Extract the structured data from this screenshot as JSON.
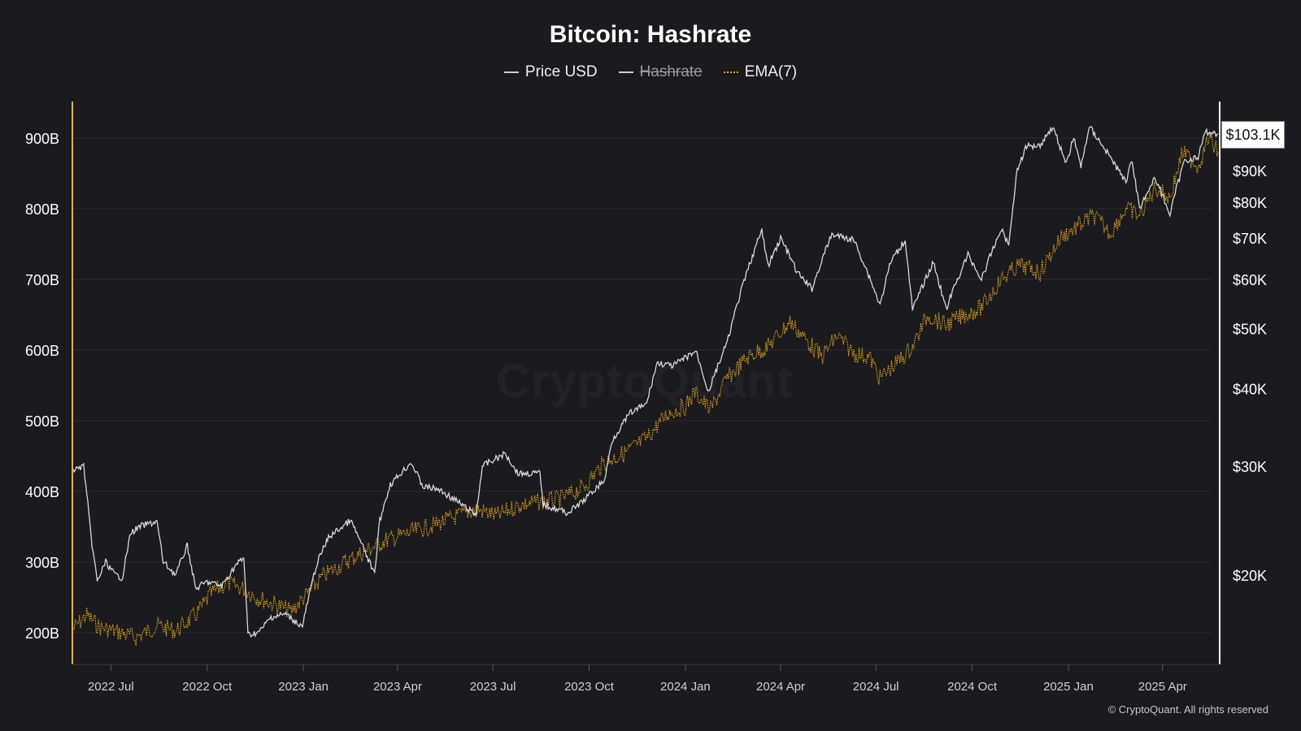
{
  "chart_data": {
    "type": "line",
    "title": "Bitcoin: Hashrate",
    "legend": [
      {
        "name": "Price USD",
        "style": "solid",
        "color": "#d4d4d4",
        "hidden": false
      },
      {
        "name": "Hashrate",
        "style": "solid",
        "color": "#d4d4d4",
        "hidden": true
      },
      {
        "name": "EMA(7)",
        "style": "dotted",
        "color": "#e0a51f",
        "hidden": false
      }
    ],
    "legend_placement": "top-center",
    "x_ticks": [
      "2022 Jul",
      "2022 Oct",
      "2023 Jan",
      "2023 Apr",
      "2023 Jul",
      "2023 Oct",
      "2024 Jan",
      "2024 Apr",
      "2024 Jul",
      "2024 Oct",
      "2025 Jan",
      "2025 Apr"
    ],
    "x_range": [
      "2022-05-26",
      "2025-05-24"
    ],
    "y_left_ticks": [
      "200B",
      "300B",
      "400B",
      "500B",
      "600B",
      "700B",
      "800B",
      "900B"
    ],
    "y_left_values": [
      200,
      300,
      400,
      500,
      600,
      700,
      800,
      900
    ],
    "y_left_range": [
      155,
      955
    ],
    "y_right_ticks": [
      "$20K",
      "$30K",
      "$40K",
      "$50K",
      "$60K",
      "$70K",
      "$80K",
      "$90K"
    ],
    "y_right_values": [
      20000,
      30000,
      40000,
      50000,
      60000,
      70000,
      80000,
      90000
    ],
    "y_right_scale": "log",
    "current_price_label": "$103.1K",
    "grid": "horizontal",
    "price_series": {
      "name": "Price USD",
      "points": [
        [
          "2022-05-26",
          29500
        ],
        [
          "2022-06-05",
          30000
        ],
        [
          "2022-06-12",
          23000
        ],
        [
          "2022-06-18",
          19500
        ],
        [
          "2022-06-26",
          21000
        ],
        [
          "2022-07-05",
          20000
        ],
        [
          "2022-07-12",
          19800
        ],
        [
          "2022-07-20",
          23400
        ],
        [
          "2022-07-30",
          24000
        ],
        [
          "2022-08-14",
          24400
        ],
        [
          "2022-08-20",
          21000
        ],
        [
          "2022-09-01",
          20000
        ],
        [
          "2022-09-12",
          22300
        ],
        [
          "2022-09-20",
          19000
        ],
        [
          "2022-10-01",
          19500
        ],
        [
          "2022-10-15",
          19200
        ],
        [
          "2022-10-29",
          20800
        ],
        [
          "2022-11-05",
          21300
        ],
        [
          "2022-11-09",
          16000
        ],
        [
          "2022-11-20",
          16200
        ],
        [
          "2022-12-01",
          17100
        ],
        [
          "2022-12-15",
          17300
        ],
        [
          "2022-12-31",
          16500
        ],
        [
          "2023-01-14",
          20900
        ],
        [
          "2023-01-25",
          23000
        ],
        [
          "2023-02-15",
          24500
        ],
        [
          "2023-03-10",
          20000
        ],
        [
          "2023-03-15",
          24500
        ],
        [
          "2023-03-25",
          28000
        ],
        [
          "2023-04-14",
          30400
        ],
        [
          "2023-04-25",
          27800
        ],
        [
          "2023-05-10",
          27500
        ],
        [
          "2023-05-25",
          26500
        ],
        [
          "2023-06-15",
          25000
        ],
        [
          "2023-06-21",
          30000
        ],
        [
          "2023-07-13",
          31400
        ],
        [
          "2023-07-25",
          29200
        ],
        [
          "2023-08-15",
          29200
        ],
        [
          "2023-08-18",
          26000
        ],
        [
          "2023-09-11",
          25200
        ],
        [
          "2023-09-25",
          26300
        ],
        [
          "2023-10-16",
          28500
        ],
        [
          "2023-10-23",
          33000
        ],
        [
          "2023-11-09",
          36500
        ],
        [
          "2023-11-25",
          37800
        ],
        [
          "2023-12-05",
          44000
        ],
        [
          "2023-12-20",
          43500
        ],
        [
          "2024-01-11",
          46000
        ],
        [
          "2024-01-23",
          39500
        ],
        [
          "2024-02-10",
          47500
        ],
        [
          "2024-02-28",
          61000
        ],
        [
          "2024-03-14",
          72000
        ],
        [
          "2024-03-20",
          63000
        ],
        [
          "2024-04-01",
          70000
        ],
        [
          "2024-04-17",
          61500
        ],
        [
          "2024-05-01",
          58000
        ],
        [
          "2024-05-20",
          71000
        ],
        [
          "2024-06-10",
          69500
        ],
        [
          "2024-06-25",
          60500
        ],
        [
          "2024-07-05",
          54500
        ],
        [
          "2024-07-15",
          64000
        ],
        [
          "2024-07-29",
          69500
        ],
        [
          "2024-08-05",
          53500
        ],
        [
          "2024-08-25",
          64000
        ],
        [
          "2024-09-06",
          53700
        ],
        [
          "2024-09-27",
          65800
        ],
        [
          "2024-10-10",
          60000
        ],
        [
          "2024-10-29",
          72500
        ],
        [
          "2024-11-05",
          68000
        ],
        [
          "2024-11-13",
          90000
        ],
        [
          "2024-11-22",
          98500
        ],
        [
          "2024-12-05",
          99000
        ],
        [
          "2024-12-17",
          106000
        ],
        [
          "2024-12-30",
          92000
        ],
        [
          "2025-01-06",
          102000
        ],
        [
          "2025-01-13",
          91000
        ],
        [
          "2025-01-21",
          106000
        ],
        [
          "2025-02-04",
          98000
        ],
        [
          "2025-02-25",
          86000
        ],
        [
          "2025-03-02",
          94000
        ],
        [
          "2025-03-10",
          78500
        ],
        [
          "2025-03-25",
          87500
        ],
        [
          "2025-04-08",
          76500
        ],
        [
          "2025-04-22",
          93500
        ],
        [
          "2025-05-05",
          94500
        ],
        [
          "2025-05-12",
          104000
        ],
        [
          "2025-05-24",
          103100
        ]
      ]
    },
    "ema_series": {
      "name": "EMA(7)",
      "points": [
        [
          "2022-05-26",
          205
        ],
        [
          "2022-06-08",
          225
        ],
        [
          "2022-06-20",
          208
        ],
        [
          "2022-07-10",
          200
        ],
        [
          "2022-07-25",
          193
        ],
        [
          "2022-08-15",
          210
        ],
        [
          "2022-09-01",
          202
        ],
        [
          "2022-09-20",
          225
        ],
        [
          "2022-10-05",
          255
        ],
        [
          "2022-10-20",
          270
        ],
        [
          "2022-11-05",
          262
        ],
        [
          "2022-11-20",
          248
        ],
        [
          "2022-12-05",
          240
        ],
        [
          "2022-12-20",
          230
        ],
        [
          "2023-01-05",
          255
        ],
        [
          "2023-01-20",
          280
        ],
        [
          "2023-02-10",
          300
        ],
        [
          "2023-03-01",
          315
        ],
        [
          "2023-03-20",
          330
        ],
        [
          "2023-04-10",
          340
        ],
        [
          "2023-05-01",
          350
        ],
        [
          "2023-05-20",
          360
        ],
        [
          "2023-06-15",
          375
        ],
        [
          "2023-07-05",
          365
        ],
        [
          "2023-07-25",
          380
        ],
        [
          "2023-08-15",
          385
        ],
        [
          "2023-09-05",
          390
        ],
        [
          "2023-09-25",
          405
        ],
        [
          "2023-10-15",
          440
        ],
        [
          "2023-11-05",
          455
        ],
        [
          "2023-11-25",
          475
        ],
        [
          "2023-12-15",
          510
        ],
        [
          "2024-01-01",
          520
        ],
        [
          "2024-01-10",
          540
        ],
        [
          "2024-01-25",
          515
        ],
        [
          "2024-02-10",
          560
        ],
        [
          "2024-03-01",
          590
        ],
        [
          "2024-03-20",
          605
        ],
        [
          "2024-04-10",
          640
        ],
        [
          "2024-04-25",
          615
        ],
        [
          "2024-05-10",
          590
        ],
        [
          "2024-05-25",
          620
        ],
        [
          "2024-06-10",
          595
        ],
        [
          "2024-06-25",
          590
        ],
        [
          "2024-07-05",
          560
        ],
        [
          "2024-07-20",
          580
        ],
        [
          "2024-08-05",
          605
        ],
        [
          "2024-08-20",
          650
        ],
        [
          "2024-09-05",
          635
        ],
        [
          "2024-09-25",
          650
        ],
        [
          "2024-10-10",
          660
        ],
        [
          "2024-10-29",
          700
        ],
        [
          "2024-11-15",
          720
        ],
        [
          "2024-12-05",
          710
        ],
        [
          "2024-12-25",
          760
        ],
        [
          "2025-01-10",
          775
        ],
        [
          "2025-01-25",
          790
        ],
        [
          "2025-02-10",
          765
        ],
        [
          "2025-02-25",
          800
        ],
        [
          "2025-03-10",
          790
        ],
        [
          "2025-03-25",
          830
        ],
        [
          "2025-04-08",
          815
        ],
        [
          "2025-04-20",
          880
        ],
        [
          "2025-05-05",
          860
        ],
        [
          "2025-05-15",
          900
        ],
        [
          "2025-05-24",
          880
        ]
      ]
    }
  },
  "watermark": "CryptoQuant",
  "copyright": "© CryptoQuant. All rights reserved"
}
